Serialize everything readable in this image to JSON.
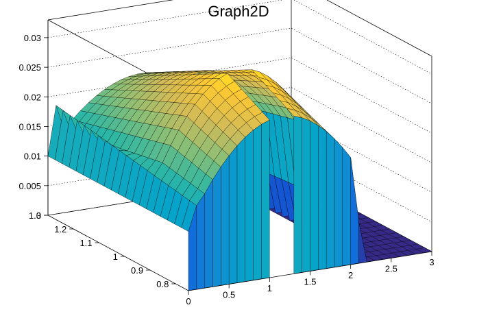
{
  "chart_data": {
    "type": "surface3d",
    "title": "Graph2D",
    "x_ticks": [
      "0",
      "0.5",
      "1",
      "1.5",
      "2",
      "2.5",
      "3"
    ],
    "y_ticks": [
      "0.8",
      "0.9",
      "1",
      "1.1",
      "1.2",
      "1.3"
    ],
    "z_ticks": [
      "0",
      "0.005",
      "0.01",
      "0.015",
      "0.02",
      "0.025",
      "0.03"
    ],
    "x_range": [
      0,
      3
    ],
    "y_range": [
      0.75,
      1.3
    ],
    "z_range": [
      0,
      0.033
    ],
    "colormap": [
      "#352a87",
      "#0f5cdd",
      "#1481d6",
      "#06a4ca",
      "#2eb7a4",
      "#87bf77",
      "#d1bb59",
      "#fec832",
      "#f9fb0e"
    ],
    "box_color": "#000000",
    "grid": true
  }
}
